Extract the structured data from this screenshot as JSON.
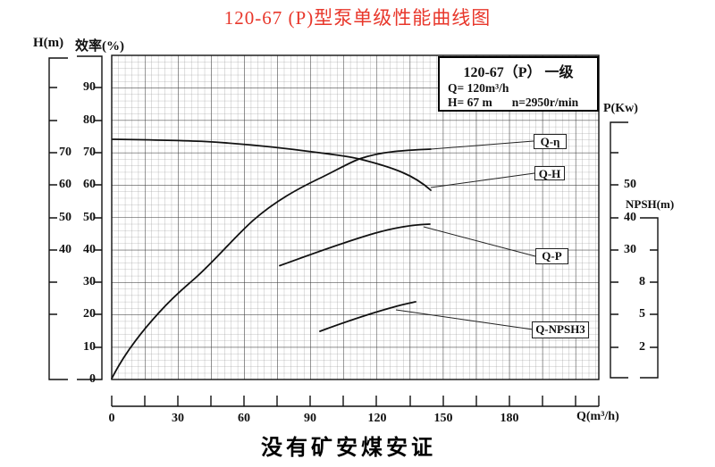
{
  "title": "120-67 (P)型泵单级性能曲线图",
  "footer": "没有矿安煤安证",
  "info_box": {
    "model": "120-67（P） 一级",
    "q_line": "Q= 120m³/h",
    "h_line": "H= 67 m",
    "n_line": "n=2950r/min"
  },
  "axes": {
    "h": {
      "title": "H(m)",
      "labels": [
        "70",
        "60",
        "50",
        "40"
      ]
    },
    "eff": {
      "title": "效率(%)",
      "labels": [
        "90",
        "80",
        "70",
        "60",
        "50",
        "40",
        "30",
        "20",
        "10",
        "0"
      ]
    },
    "p": {
      "title": "P(Kw)",
      "labels": [
        "50",
        "40",
        "30"
      ]
    },
    "npsh": {
      "title": "NPSH(m)",
      "labels": [
        "8",
        "5",
        "2"
      ]
    },
    "q": {
      "title": "Q(m³/h)",
      "labels": [
        "0",
        "30",
        "60",
        "90",
        "120",
        "150",
        "180"
      ]
    }
  },
  "curve_labels": {
    "eta": "Q-η",
    "h": "Q-H",
    "p": "Q-P",
    "npsh3": "Q-NPSH3"
  },
  "colors": {
    "title_red": "#e8372b",
    "ink": "#111111",
    "grid_minor": "#777777",
    "grid_major": "#333333"
  },
  "chart_data": {
    "type": "line",
    "title": "120-67 (P)型泵单级性能曲线图",
    "xlabel": "Q(m³/h)",
    "x_range": [
      0,
      220
    ],
    "x_tick_step_minor": 15,
    "grid": true,
    "axes": {
      "H(m)": {
        "tick_labels": [
          40,
          50,
          60,
          70
        ]
      },
      "效率(%)": {
        "range": [
          0,
          100
        ],
        "tick_labels": [
          0,
          10,
          20,
          30,
          40,
          50,
          60,
          70,
          80,
          90
        ]
      },
      "P(Kw)": {
        "tick_labels": [
          30,
          40,
          50
        ]
      },
      "NPSH(m)": {
        "tick_labels": [
          2,
          5,
          8
        ]
      }
    },
    "series": [
      {
        "name": "Q-η",
        "axis": "效率(%)",
        "points": [
          [
            0,
            0
          ],
          [
            20,
            20
          ],
          [
            40,
            32
          ],
          [
            65,
            49
          ],
          [
            95,
            62
          ],
          [
            112,
            67.5
          ],
          [
            130,
            69.5
          ],
          [
            144,
            70.5
          ]
        ]
      },
      {
        "name": "Q-H",
        "axis": "H(m)",
        "points": [
          [
            0,
            73.5
          ],
          [
            30,
            73.3
          ],
          [
            60,
            72
          ],
          [
            90,
            70
          ],
          [
            113,
            68
          ],
          [
            120,
            67
          ],
          [
            133,
            63
          ],
          [
            145,
            58
          ]
        ]
      },
      {
        "name": "Q-P",
        "axis": "P(Kw)",
        "points": [
          [
            76,
            25
          ],
          [
            100,
            31
          ],
          [
            120,
            35
          ],
          [
            135,
            37.3
          ],
          [
            144,
            38
          ]
        ]
      },
      {
        "name": "Q-NPSH3",
        "axis": "NPSH(m)",
        "points": [
          [
            94,
            3.5
          ],
          [
            110,
            4.5
          ],
          [
            127,
            5.7
          ],
          [
            138,
            6.2
          ]
        ]
      }
    ],
    "rated_point": {
      "Q": "120m³/h",
      "H": "67 m",
      "n": "2950r/min"
    },
    "legend_position": "labels-on-plot"
  }
}
